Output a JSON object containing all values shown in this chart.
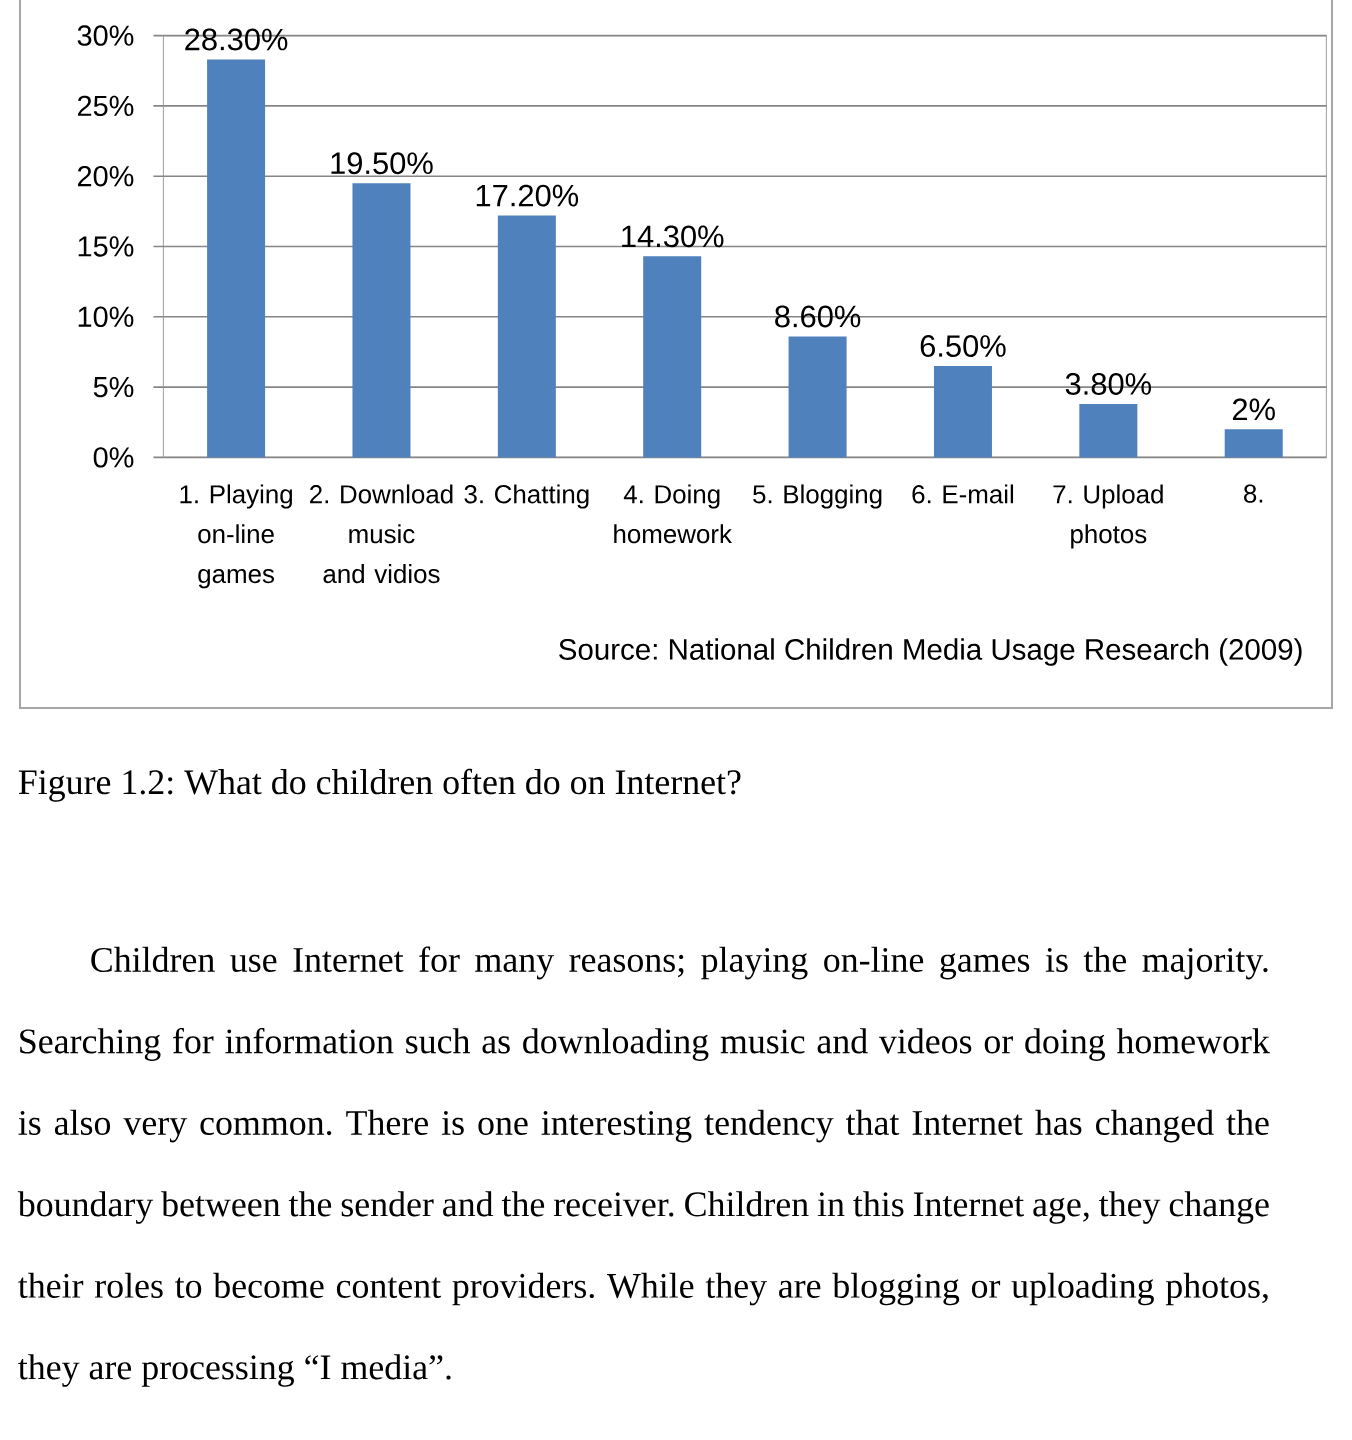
{
  "chart_data": {
    "type": "bar",
    "title": "Figure 1.2: What do children often do on Internet?",
    "categories": [
      "1. Playing on-line games",
      "2. Download music and vidios",
      "3. Chatting",
      "4. Doing homework",
      "5. Blogging",
      "6. E-mail",
      "7. Upload photos",
      "8."
    ],
    "values": [
      28.3,
      19.5,
      17.2,
      14.3,
      8.6,
      6.5,
      3.8,
      2
    ],
    "value_labels": [
      "28.30%",
      "19.50%",
      "17.20%",
      "14.30%",
      "8.60%",
      "6.50%",
      "3.80%",
      "2%"
    ],
    "color": "#4f81bd",
    "ylim": [
      0,
      30
    ],
    "yticks": [
      {
        "value": 0,
        "label": "0%"
      },
      {
        "value": 5,
        "label": "5%"
      },
      {
        "value": 10,
        "label": "10%"
      },
      {
        "value": 15,
        "label": "15%"
      },
      {
        "value": 20,
        "label": "20%"
      },
      {
        "value": 25,
        "label": "25%"
      },
      {
        "value": 30,
        "label": "30%"
      }
    ],
    "grid": "y",
    "annotations": [
      "Source: National Children Media Usage Research (2009)",
      "Children use Internet for many reasons; playing on-line games is the majority. Searching for information such as downloading music and videos or doing homework is also very common. There is one interesting tendency that Internet has changed the boundary between the sender and the receiver. Children in this Internet age, they change their roles to become content providers. While they are blogging or uploading photos, they are processing “I media”."
    ]
  }
}
